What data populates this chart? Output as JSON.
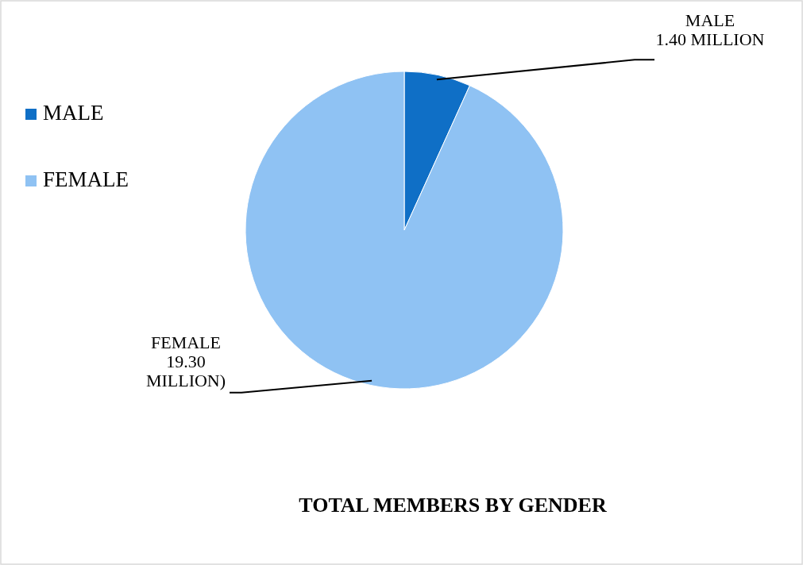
{
  "chart_data": {
    "type": "pie",
    "title": "TOTAL MEMBERS BY GENDER",
    "categories": [
      "MALE",
      "FEMALE"
    ],
    "values": [
      1.4,
      19.3
    ],
    "colors": [
      "#0f6fc6",
      "#8fc2f3"
    ],
    "value_labels": [
      "1.40 MILLION",
      "19.30 MILLION)"
    ],
    "legend": "left"
  }
}
